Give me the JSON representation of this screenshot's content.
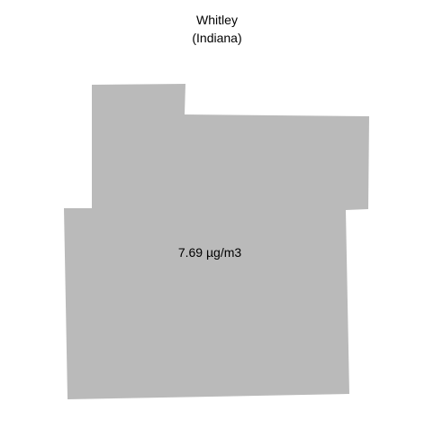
{
  "map": {
    "title": "Whitley",
    "subtitle": "(Indiana)",
    "region_fill": "#bababa",
    "value_label": "7.69 µg/m3"
  }
}
